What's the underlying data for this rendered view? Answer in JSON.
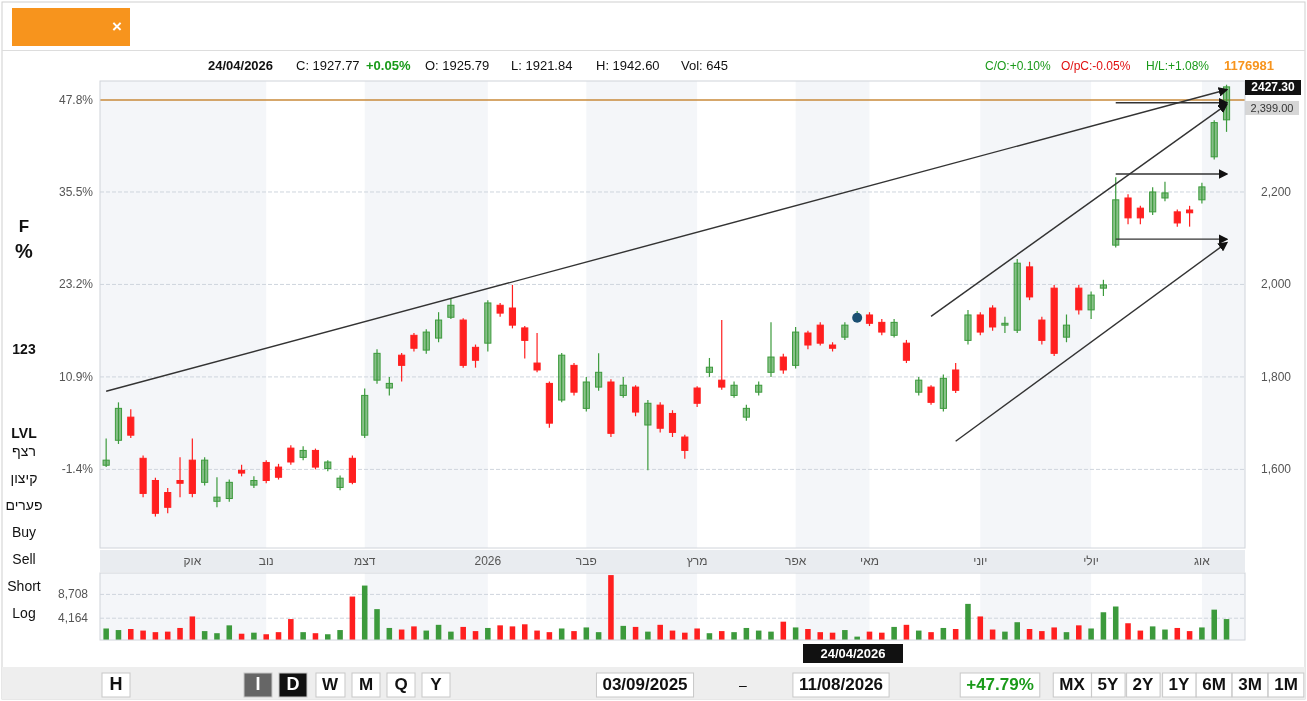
{
  "chart_data": [
    {
      "type": "candlestick",
      "categories": [
        null,
        null,
        null,
        null,
        null,
        null,
        null,
        "אוק",
        null,
        null,
        null,
        null,
        null,
        "נוב",
        null,
        null,
        null,
        null,
        null,
        null,
        null,
        "דצמ",
        null,
        null,
        null,
        null,
        null,
        null,
        null,
        null,
        null,
        "2026",
        null,
        null,
        null,
        null,
        null,
        null,
        null,
        "פבר",
        null,
        null,
        null,
        null,
        null,
        null,
        null,
        null,
        "מרץ",
        null,
        null,
        null,
        null,
        null,
        null,
        null,
        "אפר",
        null,
        null,
        null,
        null,
        null,
        "מאי",
        null,
        null,
        null,
        null,
        null,
        null,
        null,
        null,
        "יוני",
        null,
        null,
        null,
        null,
        null,
        null,
        null,
        null,
        "יולי",
        null,
        null,
        null,
        null,
        null,
        null,
        null,
        null,
        "אוג",
        null,
        null
      ],
      "ohlc": [
        [
          1609,
          1667,
          1605,
          1620
        ],
        [
          1663,
          1745,
          1655,
          1732
        ],
        [
          1713,
          1730,
          1668,
          1674
        ],
        [
          1624,
          1630,
          1540,
          1548
        ],
        [
          1576,
          1582,
          1498,
          1505
        ],
        [
          1550,
          1560,
          1505,
          1518
        ],
        [
          1576,
          1626,
          1540,
          1570
        ],
        [
          1620,
          1667,
          1540,
          1548
        ],
        [
          1572,
          1626,
          1565,
          1620
        ],
        [
          1531,
          1583,
          1518,
          1540
        ],
        [
          1537,
          1578,
          1530,
          1572
        ],
        [
          1598,
          1610,
          1585,
          1592
        ],
        [
          1566,
          1585,
          1560,
          1576
        ],
        [
          1615,
          1620,
          1570,
          1576
        ],
        [
          1605,
          1612,
          1578,
          1583
        ],
        [
          1646,
          1652,
          1610,
          1616
        ],
        [
          1626,
          1650,
          1620,
          1641
        ],
        [
          1641,
          1645,
          1600,
          1605
        ],
        [
          1602,
          1620,
          1596,
          1616
        ],
        [
          1561,
          1587,
          1555,
          1581
        ],
        [
          1624,
          1630,
          1568,
          1572
        ],
        [
          1674,
          1775,
          1668,
          1760
        ],
        [
          1793,
          1860,
          1785,
          1851
        ],
        [
          1776,
          1800,
          1760,
          1786
        ],
        [
          1847,
          1852,
          1790,
          1825
        ],
        [
          1890,
          1895,
          1855,
          1862
        ],
        [
          1858,
          1903,
          1850,
          1897
        ],
        [
          1884,
          1940,
          1875,
          1923
        ],
        [
          1929,
          1970,
          1925,
          1955
        ],
        [
          1923,
          1927,
          1820,
          1825
        ],
        [
          1864,
          1870,
          1820,
          1836
        ],
        [
          1873,
          1966,
          1855,
          1960
        ],
        [
          1955,
          1960,
          1930,
          1938
        ],
        [
          1949,
          1999,
          1905,
          1912
        ],
        [
          1906,
          1910,
          1840,
          1879
        ],
        [
          1830,
          1895,
          1810,
          1815
        ],
        [
          1786,
          1790,
          1690,
          1700
        ],
        [
          1750,
          1852,
          1745,
          1847
        ],
        [
          1825,
          1830,
          1760,
          1767
        ],
        [
          1732,
          1800,
          1725,
          1789
        ],
        [
          1778,
          1851,
          1770,
          1810
        ],
        [
          1789,
          1795,
          1670,
          1678
        ],
        [
          1760,
          1800,
          1755,
          1782
        ],
        [
          1778,
          1782,
          1715,
          1724
        ],
        [
          1696,
          1750,
          1598,
          1743
        ],
        [
          1739,
          1745,
          1680,
          1689
        ],
        [
          1721,
          1728,
          1670,
          1680
        ],
        [
          1670,
          1675,
          1623,
          1641
        ],
        [
          1776,
          1780,
          1735,
          1743
        ],
        [
          1810,
          1841,
          1800,
          1821
        ],
        [
          1793,
          1923,
          1772,
          1778
        ],
        [
          1760,
          1790,
          1755,
          1782
        ],
        [
          1713,
          1740,
          1705,
          1732
        ],
        [
          1767,
          1790,
          1760,
          1782
        ],
        [
          1810,
          1918,
          1800,
          1843
        ],
        [
          1843,
          1850,
          1807,
          1815
        ],
        [
          1825,
          1908,
          1818,
          1897
        ],
        [
          1895,
          1900,
          1860,
          1869
        ],
        [
          1912,
          1918,
          1868,
          1873
        ],
        [
          1869,
          1875,
          1855,
          1862
        ],
        [
          1886,
          1918,
          1880,
          1912
        ],
        [
          1925.79,
          1942.6,
          1921.84,
          1927.77
        ],
        [
          1934,
          1940,
          1910,
          1916
        ],
        [
          1918,
          1925,
          1890,
          1897
        ],
        [
          1890,
          1925,
          1885,
          1918
        ],
        [
          1873,
          1880,
          1830,
          1836
        ],
        [
          1767,
          1800,
          1760,
          1793
        ],
        [
          1778,
          1782,
          1740,
          1745
        ],
        [
          1732,
          1805,
          1725,
          1797
        ],
        [
          1815,
          1830,
          1765,
          1771
        ],
        [
          1879,
          1945,
          1870,
          1934
        ],
        [
          1934,
          1940,
          1890,
          1897
        ],
        [
          1949,
          1955,
          1900,
          1908
        ],
        [
          1912,
          1930,
          1895,
          1916
        ],
        [
          1901,
          2055,
          1895,
          2046
        ],
        [
          2038,
          2049,
          1966,
          1973
        ],
        [
          1923,
          1930,
          1870,
          1879
        ],
        [
          1992,
          1999,
          1845,
          1851
        ],
        [
          1886,
          1935,
          1875,
          1912
        ],
        [
          1992,
          1999,
          1935,
          1945
        ],
        [
          1945,
          1985,
          1925,
          1977
        ],
        [
          1992,
          2010,
          1975,
          1999
        ],
        [
          2085,
          2232,
          2080,
          2183
        ],
        [
          2187,
          2195,
          2130,
          2144
        ],
        [
          2165,
          2170,
          2130,
          2144
        ],
        [
          2157,
          2210,
          2150,
          2200
        ],
        [
          2187,
          2222,
          2180,
          2198
        ],
        [
          2157,
          2162,
          2125,
          2133
        ],
        [
          2161,
          2170,
          2125,
          2155
        ],
        [
          2183,
          2220,
          2175,
          2211
        ],
        [
          2276,
          2355,
          2270,
          2350
        ],
        [
          2356,
          2432,
          2330,
          2427.3
        ]
      ],
      "colors": [
        "#3c9a3c",
        "#3c9a3c",
        "#ff1f1f",
        "#ff1f1f",
        "#ff1f1f",
        "#ff1f1f",
        "#ff1f1f",
        "#ff1f1f",
        "#3c9a3c",
        "#3c9a3c",
        "#3c9a3c",
        "#ff1f1f",
        "#3c9a3c",
        "#ff1f1f",
        "#ff1f1f",
        "#ff1f1f",
        "#3c9a3c",
        "#ff1f1f",
        "#3c9a3c",
        "#3c9a3c",
        "#ff1f1f",
        "#3c9a3c",
        "#3c9a3c",
        "#3c9a3c",
        "#ff1f1f",
        "#ff1f1f",
        "#3c9a3c",
        "#3c9a3c",
        "#3c9a3c",
        "#ff1f1f",
        "#ff1f1f",
        "#3c9a3c",
        "#ff1f1f",
        "#ff1f1f",
        "#ff1f1f",
        "#ff1f1f",
        "#ff1f1f",
        "#3c9a3c",
        "#ff1f1f",
        "#3c9a3c",
        "#3c9a3c",
        "#ff1f1f",
        "#3c9a3c",
        "#ff1f1f",
        "#3c9a3c",
        "#ff1f1f",
        "#ff1f1f",
        "#ff1f1f",
        "#ff1f1f",
        "#3c9a3c",
        "#ff1f1f",
        "#3c9a3c",
        "#3c9a3c",
        "#3c9a3c",
        "#3c9a3c",
        "#ff1f1f",
        "#3c9a3c",
        "#ff1f1f",
        "#ff1f1f",
        "#ff1f1f",
        "#3c9a3c",
        "#3c9a3c",
        "#ff1f1f",
        "#ff1f1f",
        "#3c9a3c",
        "#ff1f1f",
        "#3c9a3c",
        "#ff1f1f",
        "#3c9a3c",
        "#ff1f1f",
        "#3c9a3c",
        "#ff1f1f",
        "#ff1f1f",
        "#3c9a3c",
        "#3c9a3c",
        "#ff1f1f",
        "#ff1f1f",
        "#ff1f1f",
        "#3c9a3c",
        "#ff1f1f",
        "#3c9a3c",
        "#3c9a3c",
        "#3c9a3c",
        "#ff1f1f",
        "#ff1f1f",
        "#3c9a3c",
        "#3c9a3c",
        "#ff1f1f",
        "#ff1f1f",
        "#3c9a3c",
        "#3c9a3c",
        "#3c9a3c"
      ],
      "series": [
        {
          "type": "line",
          "color": "#333333",
          "values": [
            1769,
            null,
            null,
            null,
            null,
            null,
            null,
            null,
            null,
            null,
            null,
            null,
            null,
            null,
            null,
            null,
            null,
            null,
            null,
            null,
            null,
            null,
            null,
            null,
            null,
            null,
            null,
            null,
            null,
            null,
            null,
            null,
            null,
            null,
            null,
            null,
            null,
            null,
            null,
            null,
            null,
            null,
            null,
            null,
            null,
            null,
            null,
            null,
            null,
            null,
            null,
            null,
            null,
            null,
            null,
            null,
            null,
            null,
            null,
            null,
            null,
            null,
            null,
            null,
            null,
            null,
            null,
            null,
            null,
            null,
            null,
            null,
            null,
            null,
            null,
            null,
            null,
            null,
            null,
            null,
            null,
            null,
            null,
            null,
            null,
            null,
            null,
            null,
            null,
            null,
            null,
            2421
          ]
        },
        {
          "type": "line",
          "color": "#333333",
          "values": [
            null,
            null,
            null,
            null,
            null,
            null,
            null,
            null,
            null,
            null,
            null,
            null,
            null,
            null,
            null,
            null,
            null,
            null,
            null,
            null,
            null,
            null,
            null,
            null,
            null,
            null,
            null,
            null,
            null,
            null,
            null,
            null,
            null,
            null,
            null,
            null,
            null,
            null,
            null,
            null,
            null,
            null,
            null,
            null,
            null,
            null,
            null,
            null,
            null,
            null,
            null,
            null,
            null,
            null,
            null,
            null,
            null,
            null,
            null,
            null,
            null,
            null,
            null,
            null,
            null,
            null,
            null,
            1931,
            null,
            null,
            null,
            null,
            null,
            null,
            null,
            null,
            null,
            null,
            null,
            null,
            null,
            null,
            null,
            null,
            null,
            null,
            null,
            null,
            null,
            null,
            null,
            2389
          ]
        },
        {
          "type": "line",
          "color": "#333333",
          "values": [
            null,
            null,
            null,
            null,
            null,
            null,
            null,
            null,
            null,
            null,
            null,
            null,
            null,
            null,
            null,
            null,
            null,
            null,
            null,
            null,
            null,
            null,
            null,
            null,
            null,
            null,
            null,
            null,
            null,
            null,
            null,
            null,
            null,
            null,
            null,
            null,
            null,
            null,
            null,
            null,
            null,
            null,
            null,
            null,
            null,
            null,
            null,
            null,
            null,
            null,
            null,
            null,
            null,
            null,
            null,
            null,
            null,
            null,
            null,
            null,
            null,
            null,
            null,
            null,
            null,
            null,
            null,
            null,
            null,
            1661,
            null,
            null,
            null,
            null,
            null,
            null,
            null,
            null,
            null,
            null,
            null,
            null,
            null,
            null,
            null,
            null,
            null,
            null,
            null,
            null,
            null,
            2090
          ]
        },
        {
          "type": "line",
          "color": "#333333",
          "values": [
            null,
            null,
            null,
            null,
            null,
            null,
            null,
            null,
            null,
            null,
            null,
            null,
            null,
            null,
            null,
            null,
            null,
            null,
            null,
            null,
            null,
            null,
            null,
            null,
            null,
            null,
            null,
            null,
            null,
            null,
            null,
            null,
            null,
            null,
            null,
            null,
            null,
            null,
            null,
            null,
            null,
            null,
            null,
            null,
            null,
            null,
            null,
            null,
            null,
            null,
            null,
            null,
            null,
            null,
            null,
            null,
            null,
            null,
            null,
            null,
            null,
            null,
            null,
            null,
            null,
            null,
            null,
            null,
            null,
            null,
            null,
            null,
            null,
            null,
            null,
            null,
            null,
            null,
            null,
            null,
            null,
            null,
            2239,
            null,
            null,
            null,
            null,
            null,
            null,
            null,
            null,
            2239
          ]
        },
        {
          "type": "line",
          "color": "#333333",
          "values": [
            null,
            null,
            null,
            null,
            null,
            null,
            null,
            null,
            null,
            null,
            null,
            null,
            null,
            null,
            null,
            null,
            null,
            null,
            null,
            null,
            null,
            null,
            null,
            null,
            null,
            null,
            null,
            null,
            null,
            null,
            null,
            null,
            null,
            null,
            null,
            null,
            null,
            null,
            null,
            null,
            null,
            null,
            null,
            null,
            null,
            null,
            null,
            null,
            null,
            null,
            null,
            null,
            null,
            null,
            null,
            null,
            null,
            null,
            null,
            null,
            null,
            null,
            null,
            null,
            null,
            null,
            null,
            null,
            null,
            null,
            null,
            null,
            null,
            null,
            null,
            null,
            null,
            null,
            null,
            null,
            null,
            null,
            2098,
            null,
            null,
            null,
            null,
            null,
            null,
            null,
            null,
            2098
          ]
        },
        {
          "type": "line",
          "color": "#333333",
          "values": [
            null,
            null,
            null,
            null,
            null,
            null,
            null,
            null,
            null,
            null,
            null,
            null,
            null,
            null,
            null,
            null,
            null,
            null,
            null,
            null,
            null,
            null,
            null,
            null,
            null,
            null,
            null,
            null,
            null,
            null,
            null,
            null,
            null,
            null,
            null,
            null,
            null,
            null,
            null,
            null,
            null,
            null,
            null,
            null,
            null,
            null,
            null,
            null,
            null,
            null,
            null,
            null,
            null,
            null,
            null,
            null,
            null,
            null,
            null,
            null,
            null,
            null,
            null,
            null,
            null,
            null,
            null,
            null,
            null,
            null,
            null,
            null,
            null,
            null,
            null,
            null,
            null,
            null,
            null,
            null,
            null,
            null,
            2393,
            null,
            null,
            null,
            null,
            null,
            null,
            null,
            null,
            2393
          ]
        },
        {
          "type": "scatter",
          "color": "#1b4f72",
          "values": [
            null,
            null,
            null,
            null,
            null,
            null,
            null,
            null,
            null,
            null,
            null,
            null,
            null,
            null,
            null,
            null,
            null,
            null,
            null,
            null,
            null,
            null,
            null,
            null,
            null,
            null,
            null,
            null,
            null,
            null,
            null,
            null,
            null,
            null,
            null,
            null,
            null,
            null,
            null,
            null,
            null,
            null,
            null,
            null,
            null,
            null,
            null,
            null,
            null,
            null,
            null,
            null,
            null,
            null,
            null,
            null,
            null,
            null,
            null,
            null,
            null,
            1928,
            null,
            null,
            null,
            null,
            null,
            null,
            null,
            null,
            null,
            null,
            null,
            null,
            null,
            null,
            null,
            null,
            null,
            null,
            null,
            null,
            null,
            null,
            null,
            null,
            null,
            null,
            null,
            null,
            null,
            null
          ]
        }
      ],
      "ylim": [
        1430,
        2440
      ],
      "yticks": [
        {
          "value": 1600,
          "label": "1,600"
        },
        {
          "value": 1800,
          "label": "1,800"
        },
        {
          "value": 2000,
          "label": "2,000"
        },
        {
          "value": 2200,
          "label": "2,200"
        }
      ],
      "y2lim": [
        -11.9,
        50.3
      ],
      "y2ticks": [
        {
          "value": -1.4,
          "label": "-1.4%"
        },
        {
          "value": 10.9,
          "label": "10.9%"
        },
        {
          "value": 23.2,
          "label": "23.2%"
        },
        {
          "value": 35.5,
          "label": "35.5%"
        },
        {
          "value": 47.8,
          "label": "47.8%"
        }
      ],
      "grid": "y",
      "ref_lines": [
        {
          "axis": "y",
          "value": 2399,
          "label": "2,399.00",
          "color": "#c98a3a"
        }
      ],
      "bands": [
        {
          "axis": "x",
          "from": "נוב",
          "to": "דצמ",
          "color": "#ffffff"
        },
        {
          "axis": "x",
          "from": "2026",
          "to": "פבר",
          "color": "#ffffff"
        },
        {
          "axis": "x",
          "from": "מרץ",
          "to": "אפר",
          "color": "#ffffff"
        },
        {
          "axis": "x",
          "from": "מאי",
          "to": "יוני",
          "color": "#ffffff"
        },
        {
          "axis": "x",
          "from": "יולי",
          "to": "אוג",
          "color": "#ffffff"
        }
      ],
      "annotations": [
        "24/04/2026",
        "C: 1927.77",
        "+0.05%",
        "O: 1925.79",
        "L: 1921.84",
        "H: 1942.60",
        "Vol: 645",
        "C/O:+0.10%",
        "O/pC:-0.05%",
        "H/L:+1.08%",
        "1176981",
        "F",
        "%",
        "123",
        "LVL",
        "רצף",
        "קיצון",
        "פערים",
        "Buy",
        "Sell",
        "Short",
        "Log",
        "H",
        "I",
        "D",
        "W",
        "M",
        "Q",
        "Y",
        "03/09/2025",
        "–",
        "11/08/2026",
        "+47.79%",
        "MX",
        "5Y",
        "2Y",
        "1Y",
        "6M",
        "3M",
        "1M",
        "2427.30",
        "×"
      ]
    },
    {
      "type": "bar",
      "categories": [
        null,
        null,
        null,
        null,
        null,
        null,
        null,
        "אוק",
        null,
        null,
        null,
        null,
        null,
        "נוב",
        null,
        null,
        null,
        null,
        null,
        null,
        null,
        "דצמ",
        null,
        null,
        null,
        null,
        null,
        null,
        null,
        null,
        null,
        "2026",
        null,
        null,
        null,
        null,
        null,
        null,
        null,
        "פבר",
        null,
        null,
        null,
        null,
        null,
        null,
        null,
        null,
        "מרץ",
        null,
        null,
        null,
        null,
        null,
        null,
        null,
        "אפר",
        null,
        null,
        null,
        null,
        null,
        "מאי",
        null,
        null,
        null,
        null,
        null,
        null,
        null,
        null,
        "יוני",
        null,
        null,
        null,
        null,
        null,
        null,
        null,
        null,
        "יולי",
        null,
        null,
        null,
        null,
        null,
        null,
        null,
        null,
        "אוג",
        null,
        null
      ],
      "values": [
        2200,
        1900,
        2100,
        1800,
        1500,
        1600,
        2300,
        4500,
        1700,
        1300,
        2800,
        1200,
        1400,
        1100,
        1500,
        4000,
        1500,
        1300,
        1100,
        1900,
        8300,
        10400,
        5900,
        2300,
        2000,
        2600,
        1800,
        2900,
        1600,
        2500,
        1700,
        2300,
        2800,
        2600,
        3000,
        1800,
        1500,
        2200,
        1700,
        2400,
        1500,
        12400,
        2700,
        2500,
        1600,
        2900,
        1800,
        1400,
        2200,
        1300,
        1700,
        1500,
        2300,
        1800,
        1600,
        3500,
        2400,
        2100,
        1500,
        1400,
        1900,
        645,
        1600,
        1400,
        2500,
        2900,
        1800,
        1500,
        2300,
        2100,
        6900,
        4500,
        2000,
        1600,
        3400,
        2100,
        1700,
        2400,
        1500,
        2800,
        2200,
        5300,
        6400,
        3200,
        1800,
        2600,
        2000,
        2300,
        1700,
        2400,
        5800,
        4000
      ],
      "colors": [
        "#3c9a3c",
        "#3c9a3c",
        "#ff1f1f",
        "#ff1f1f",
        "#ff1f1f",
        "#ff1f1f",
        "#ff1f1f",
        "#ff1f1f",
        "#3c9a3c",
        "#3c9a3c",
        "#3c9a3c",
        "#ff1f1f",
        "#3c9a3c",
        "#ff1f1f",
        "#ff1f1f",
        "#ff1f1f",
        "#3c9a3c",
        "#ff1f1f",
        "#3c9a3c",
        "#3c9a3c",
        "#ff1f1f",
        "#3c9a3c",
        "#3c9a3c",
        "#3c9a3c",
        "#ff1f1f",
        "#ff1f1f",
        "#3c9a3c",
        "#3c9a3c",
        "#3c9a3c",
        "#ff1f1f",
        "#ff1f1f",
        "#3c9a3c",
        "#ff1f1f",
        "#ff1f1f",
        "#ff1f1f",
        "#ff1f1f",
        "#ff1f1f",
        "#3c9a3c",
        "#ff1f1f",
        "#3c9a3c",
        "#3c9a3c",
        "#ff1f1f",
        "#3c9a3c",
        "#ff1f1f",
        "#3c9a3c",
        "#ff1f1f",
        "#ff1f1f",
        "#ff1f1f",
        "#ff1f1f",
        "#3c9a3c",
        "#ff1f1f",
        "#3c9a3c",
        "#3c9a3c",
        "#3c9a3c",
        "#3c9a3c",
        "#ff1f1f",
        "#3c9a3c",
        "#ff1f1f",
        "#ff1f1f",
        "#ff1f1f",
        "#3c9a3c",
        "#3c9a3c",
        "#ff1f1f",
        "#ff1f1f",
        "#3c9a3c",
        "#ff1f1f",
        "#3c9a3c",
        "#ff1f1f",
        "#3c9a3c",
        "#ff1f1f",
        "#3c9a3c",
        "#ff1f1f",
        "#ff1f1f",
        "#3c9a3c",
        "#3c9a3c",
        "#ff1f1f",
        "#ff1f1f",
        "#ff1f1f",
        "#3c9a3c",
        "#ff1f1f",
        "#3c9a3c",
        "#3c9a3c",
        "#3c9a3c",
        "#ff1f1f",
        "#ff1f1f",
        "#3c9a3c",
        "#3c9a3c",
        "#ff1f1f",
        "#ff1f1f",
        "#3c9a3c",
        "#3c9a3c",
        "#3c9a3c"
      ],
      "ylim": [
        0,
        12800
      ],
      "yticks": [
        {
          "value": 4164,
          "label": "4,164"
        },
        {
          "value": 8708,
          "label": "8,708"
        }
      ],
      "grid": "y",
      "tick_labels": "y",
      "bands": [
        {
          "axis": "x",
          "from": "נוב",
          "to": "דצמ",
          "color": "#ffffff"
        },
        {
          "axis": "x",
          "from": "2026",
          "to": "פבר",
          "color": "#ffffff"
        },
        {
          "axis": "x",
          "from": "מרץ",
          "to": "אפר",
          "color": "#ffffff"
        },
        {
          "axis": "x",
          "from": "מאי",
          "to": "יוני",
          "color": "#ffffff"
        },
        {
          "axis": "x",
          "from": "יולי",
          "to": "אוג",
          "color": "#ffffff"
        }
      ],
      "annotations": [
        "24/04/2026"
      ]
    }
  ]
}
